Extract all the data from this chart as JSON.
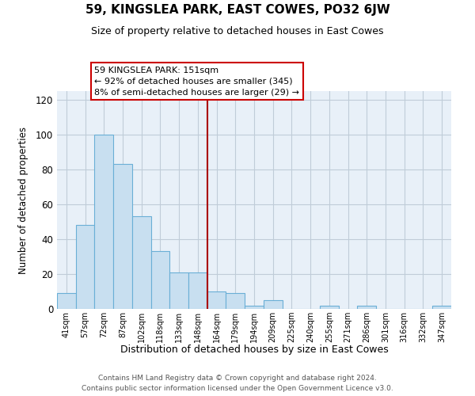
{
  "title": "59, KINGSLEA PARK, EAST COWES, PO32 6JW",
  "subtitle": "Size of property relative to detached houses in East Cowes",
  "xlabel": "Distribution of detached houses by size in East Cowes",
  "ylabel": "Number of detached properties",
  "footer_line1": "Contains HM Land Registry data © Crown copyright and database right 2024.",
  "footer_line2": "Contains public sector information licensed under the Open Government Licence v3.0.",
  "bar_labels": [
    "41sqm",
    "57sqm",
    "72sqm",
    "87sqm",
    "102sqm",
    "118sqm",
    "133sqm",
    "148sqm",
    "164sqm",
    "179sqm",
    "194sqm",
    "209sqm",
    "225sqm",
    "240sqm",
    "255sqm",
    "271sqm",
    "286sqm",
    "301sqm",
    "316sqm",
    "332sqm",
    "347sqm"
  ],
  "bar_values": [
    9,
    48,
    100,
    83,
    53,
    33,
    21,
    21,
    10,
    9,
    2,
    5,
    0,
    0,
    2,
    0,
    2,
    0,
    0,
    0,
    2
  ],
  "bar_color": "#c8dff0",
  "bar_edge_color": "#6aafd6",
  "vline_x": 7.5,
  "vline_color": "#aa0000",
  "annotation_title": "59 KINGSLEA PARK: 151sqm",
  "annotation_line1": "← 92% of detached houses are smaller (345)",
  "annotation_line2": "8% of semi-detached houses are larger (29) →",
  "annotation_box_color": "#ffffff",
  "annotation_box_edge": "#cc0000",
  "ylim": [
    0,
    125
  ],
  "yticks": [
    0,
    20,
    40,
    60,
    80,
    100,
    120
  ],
  "background_color": "#ffffff",
  "plot_bg_color": "#e8f0f8",
  "grid_color": "#c0ccd8"
}
